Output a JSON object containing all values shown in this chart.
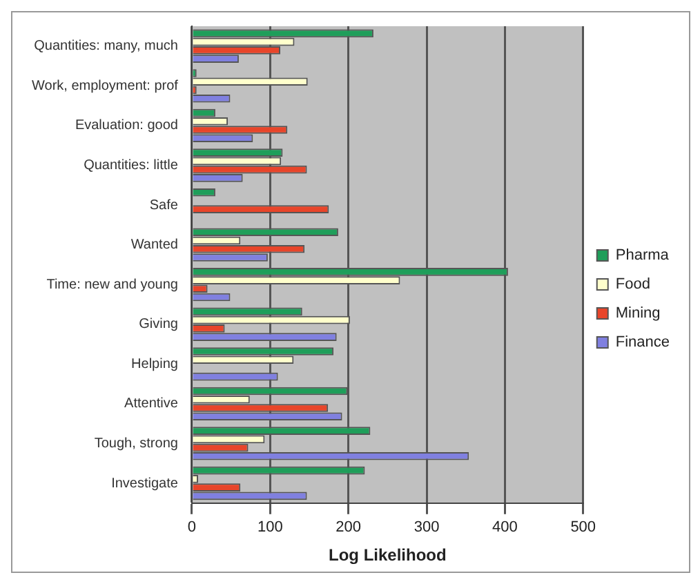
{
  "chart_data": {
    "type": "bar",
    "orientation": "horizontal",
    "xlabel": "Log Likelihood",
    "categories": [
      "Quantities: many, much",
      "Work, employment: prof",
      "Evaluation: good",
      "Quantities: little",
      "Safe",
      "Wanted",
      "Time: new and young",
      "Giving",
      "Helping",
      "Attentive",
      "Tough, strong",
      "Investigate"
    ],
    "series": [
      {
        "name": "Pharma",
        "color": "#1f9e5a",
        "values": [
          232,
          6,
          30,
          116,
          30,
          187,
          404,
          141,
          181,
          199,
          228,
          221
        ]
      },
      {
        "name": "Food",
        "color": "#ffffcc",
        "values": [
          131,
          148,
          46,
          114,
          null,
          62,
          266,
          202,
          130,
          74,
          93,
          8
        ]
      },
      {
        "name": "Mining",
        "color": "#e8452a",
        "values": [
          113,
          6,
          122,
          147,
          175,
          144,
          20,
          42,
          null,
          174,
          72,
          62
        ]
      },
      {
        "name": "Finance",
        "color": "#8080e0",
        "values": [
          60,
          49,
          78,
          65,
          null,
          97,
          49,
          185,
          110,
          192,
          354,
          147
        ]
      }
    ],
    "xlim": [
      0,
      500
    ],
    "xticks": [
      0,
      100,
      200,
      300,
      400,
      500
    ],
    "grid": "x",
    "legend": "right"
  }
}
